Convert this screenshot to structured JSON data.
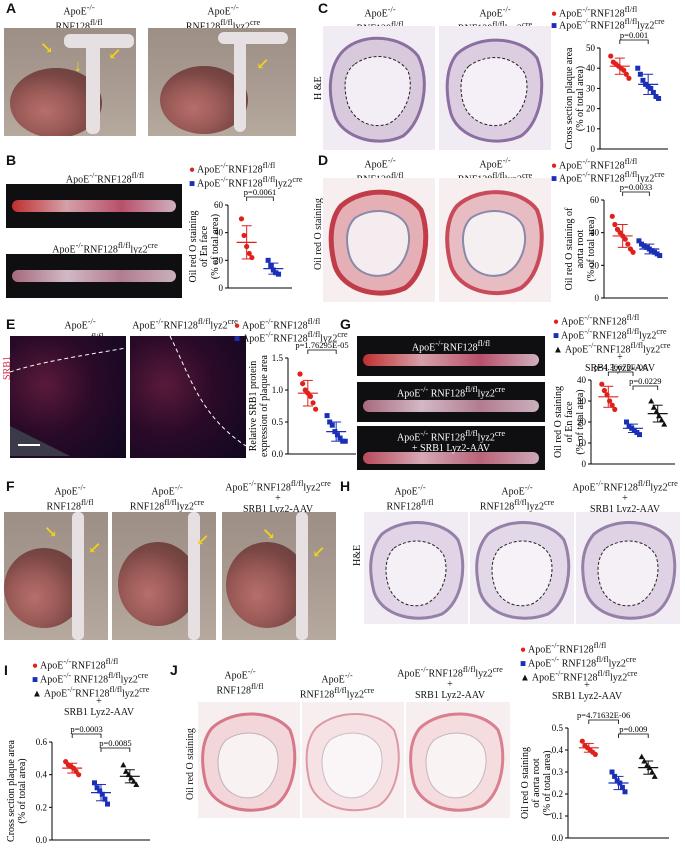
{
  "panels": {
    "A": {
      "letter": "A",
      "label1": "ApoE",
      "label1sup": "-/-",
      "label1b": "RNF128",
      "label1bsup": "fl/fl",
      "label2": "ApoE",
      "label2sup": "-/-",
      "label2b": "RNF128",
      "label2bsup": "fl/fl",
      "label2bsuf": "lyz2",
      "label2bsuf2": "cre"
    },
    "B": {
      "letter": "B",
      "img1": "ApoE-/-RNF128fl/fl",
      "img2": "ApoE-/-RNF128fl/fllyz2cre",
      "legend1": "ApoE-/-RNF128fl/fl",
      "legend2": "ApoE-/-RNF128fl/fllyz2cre",
      "ylabel": "Oil red O staining of En face (% of total area)",
      "pval": "p=0.0061"
    },
    "C": {
      "letter": "C",
      "col1": "ApoE-/- RNF128fl/fl",
      "col2": "ApoE-/- RNF128fl/fllyz2cre",
      "rowlabel": "H &E",
      "legend1": "ApoE-/-RNF128fl/fl",
      "legend2": "ApoE-/-RNF128fl/fllyz2cre",
      "ylabel": "Cross section plaque area (% of total area)",
      "pval": "p=0.001"
    },
    "D": {
      "letter": "D",
      "col1": "ApoE-/- RNF128fl/fl",
      "col2": "ApoE-/- RNF128fl/fllyz2cre",
      "rowlabel": "Oil red O staining",
      "legend1": "ApoE-/-RNF128fl/fl",
      "legend2": "ApoE-/-RNF128fl/fllyz2cre",
      "ylabel": "Oil red O staining of aorta root (% of total area)",
      "pval": "p=0.0033"
    },
    "E": {
      "letter": "E",
      "col1": "ApoE-/- RNF128fl/fl",
      "col2": "ApoE-/- RNF128fl/fllyz2cre",
      "rowlabel": "SRB1",
      "legend1": "ApoE-/-RNF128fl/fl",
      "legend2": "ApoE-/-RNF128fl/fllyz2cre",
      "ylabel": "Relative SRB1 protein expression of plaque area",
      "pval": "p=1.76295E-05"
    },
    "F": {
      "letter": "F",
      "col1": "ApoE-/- RNF128fl/fl",
      "col2": "ApoE-/- RNF128fl/fllyz2cre",
      "col3a": "ApoE-/-RNF128fl/fllyz2cre",
      "col3b": "+",
      "col3c": "SRB1 Lyz2-AAV"
    },
    "G": {
      "letter": "G",
      "img1": "ApoE-/-RNF128fl/fl",
      "img2": "ApoE-/-RNF128fl/fllyz2cre",
      "img3a": "ApoE-/-RNF128fl/fllyz2cre",
      "img3b": "+ SRB1 Lyz2-AAV",
      "legend1": "ApoE-/-RNF128fl/fl",
      "legend2": "ApoE-/-RNF128fl/fllyz2cre",
      "legend3a": "ApoE-/-RNF128fl/fllyz2cre",
      "legend3b": "+",
      "legend3c": "SRB1 Lyz2-AAV",
      "ylabel": "Oil red O staining of En face (% of total area)",
      "pval1": "p=4.36676E-06",
      "pval2": "p=0.0229"
    },
    "H": {
      "letter": "H",
      "col1": "ApoE-/- RNF128fl/fl",
      "col2": "ApoE-/- RNF128fl/fllyz2cre",
      "col3a": "ApoE-/-RNF128fl/fllyz2cre",
      "col3b": "+",
      "col3c": "SRB1 Lyz2-AAV",
      "rowlabel": "H&E"
    },
    "I": {
      "letter": "I",
      "legend1": "ApoE-/-RNF128fl/fl",
      "legend2": "ApoE-/- RNF128fl/fllyz2cre",
      "legend3a": "ApoE-/-RNF128fl/fllyz2cre",
      "legend3b": "+",
      "legend3c": "SRB1 Lyz2-AAV",
      "ylabel": "Cross section plaque area (% of total area)",
      "pval1": "p=0.0003",
      "pval2": "p=0.0085"
    },
    "J": {
      "letter": "J",
      "col1": "ApoE-/- RNF128fl/fl",
      "col2": "ApoE-/- RNF128fl/fllyz2cre",
      "col3a": "ApoE-/-RNF128fl/fllyz2cre",
      "col3b": "+",
      "col3c": "SRB1 Lyz2-AAV",
      "rowlabel": "Oil red O staining",
      "legend1": "ApoE-/-RNF128fl/fl",
      "legend2": "ApoE-/- RNF128fl/fllyz2cre",
      "legend3a": "ApoE-/-RNF128fl/fllyz2cre",
      "legend3b": "+",
      "legend3c": "SRB1 Lyz2-AAV",
      "ylabel": "Oil red O staining of aorta root (% of total area)",
      "pval1": "p=4.71632E-06",
      "pval2": "p=0.009"
    }
  },
  "colors": {
    "red": "#e0201b",
    "blue": "#1a2fb8",
    "black": "#111111",
    "arrow": "#f2d21a"
  },
  "chart_data": [
    {
      "panel": "B",
      "type": "scatter",
      "ylabel": "Oil red O staining of En face (% of total area)",
      "ylim": [
        0,
        60
      ],
      "yticks": [
        "0",
        "20",
        "40",
        "60"
      ],
      "series": [
        {
          "name": "ApoE-/-RNF128fl/fl",
          "color": "#e0201b",
          "values": [
            50,
            38,
            30,
            25,
            22
          ],
          "mean": 33,
          "sd": 12
        },
        {
          "name": "ApoE-/-RNF128fl/fllyz2cre",
          "color": "#1a2fb8",
          "values": [
            20,
            16,
            13,
            11,
            10
          ],
          "mean": 14,
          "sd": 4
        }
      ],
      "pvalues": [
        "p=0.0061"
      ]
    },
    {
      "panel": "C",
      "type": "scatter",
      "ylabel": "Cross section plaque area (% of total area)",
      "ylim": [
        0,
        50
      ],
      "yticks": [
        "0",
        "10",
        "20",
        "30",
        "40",
        "50"
      ],
      "series": [
        {
          "name": "ApoE-/-RNF128fl/fl",
          "color": "#e0201b",
          "values": [
            46,
            43,
            42,
            41,
            40,
            39,
            37,
            35
          ],
          "mean": 41,
          "sd": 4
        },
        {
          "name": "ApoE-/-RNF128fl/fllyz2cre",
          "color": "#1a2fb8",
          "values": [
            40,
            37,
            34,
            32,
            31,
            30,
            28,
            26,
            25
          ],
          "mean": 32,
          "sd": 5
        }
      ],
      "pvalues": [
        "p=0.001"
      ]
    },
    {
      "panel": "D",
      "type": "scatter",
      "ylabel": "Oil red O staining of aorta root (% of total area)",
      "ylim": [
        0,
        60
      ],
      "yticks": [
        "0",
        "20",
        "40",
        "60"
      ],
      "series": [
        {
          "name": "ApoE-/-RNF128fl/fl",
          "color": "#e0201b",
          "values": [
            50,
            45,
            42,
            40,
            38,
            36,
            33,
            30,
            28
          ],
          "mean": 38,
          "sd": 7
        },
        {
          "name": "ApoE-/-RNF128fl/fllyz2cre",
          "color": "#1a2fb8",
          "values": [
            35,
            33,
            32,
            31,
            30,
            29,
            28,
            27,
            26
          ],
          "mean": 30,
          "sd": 3
        }
      ],
      "pvalues": [
        "p=0.0033"
      ]
    },
    {
      "panel": "E",
      "type": "scatter",
      "ylabel": "Relative SRB1 protein expression of plaque area",
      "ylim": [
        0,
        1.5
      ],
      "yticks": [
        "0.0",
        "0.5",
        "1.0",
        "1.5"
      ],
      "series": [
        {
          "name": "ApoE-/-RNF128fl/fl",
          "color": "#e0201b",
          "values": [
            1.25,
            1.1,
            1.0,
            0.95,
            0.9,
            0.8,
            0.7
          ],
          "mean": 0.95,
          "sd": 0.2
        },
        {
          "name": "ApoE-/-RNF128fl/fllyz2cre",
          "color": "#1a2fb8",
          "values": [
            0.6,
            0.5,
            0.45,
            0.35,
            0.3,
            0.25,
            0.2,
            0.2
          ],
          "mean": 0.35,
          "sd": 0.15
        }
      ],
      "pvalues": [
        "p=1.76295E-05"
      ]
    },
    {
      "panel": "G",
      "type": "scatter",
      "ylabel": "Oil red O staining of En face (% of total area)",
      "ylim": [
        0,
        40
      ],
      "yticks": [
        "0",
        "10",
        "20",
        "30",
        "40"
      ],
      "series": [
        {
          "name": "ApoE-/-RNF128fl/fl",
          "color": "#e0201b",
          "values": [
            38,
            35,
            33,
            30,
            28,
            26
          ],
          "mean": 32,
          "sd": 5
        },
        {
          "name": "ApoE-/-RNF128fl/fllyz2cre",
          "color": "#1a2fb8",
          "values": [
            20,
            18,
            17,
            16,
            15,
            14
          ],
          "mean": 17,
          "sd": 2
        },
        {
          "name": "ApoE-/-RNF128fl/fllyz2cre + SRB1 Lyz2-AAV",
          "color": "#111111",
          "values": [
            30,
            27,
            25,
            23,
            21,
            19
          ],
          "mean": 24,
          "sd": 4
        }
      ],
      "pvalues": [
        "p=4.36676E-06",
        "p=0.0229"
      ]
    },
    {
      "panel": "I",
      "type": "scatter",
      "ylabel": "Cross section plaque area (% of total area)",
      "ylim": [
        0,
        0.6
      ],
      "yticks": [
        "0.0",
        "0.2",
        "0.4",
        "0.6"
      ],
      "series": [
        {
          "name": "ApoE-/-RNF128fl/fl",
          "color": "#e0201b",
          "values": [
            0.48,
            0.46,
            0.45,
            0.44,
            0.42,
            0.4
          ],
          "mean": 0.44,
          "sd": 0.03
        },
        {
          "name": "ApoE-/-RNF128fl/fllyz2cre",
          "color": "#1a2fb8",
          "values": [
            0.35,
            0.32,
            0.3,
            0.28,
            0.25,
            0.22
          ],
          "mean": 0.29,
          "sd": 0.05
        },
        {
          "name": "ApoE-/-RNF128fl/fllyz2cre + SRB1 Lyz2-AAV",
          "color": "#111111",
          "values": [
            0.46,
            0.42,
            0.4,
            0.38,
            0.36,
            0.34
          ],
          "mean": 0.39,
          "sd": 0.04
        }
      ],
      "pvalues": [
        "p=0.0003",
        "p=0.0085"
      ]
    },
    {
      "panel": "J",
      "type": "scatter",
      "ylabel": "Oil red O staining of aorta root (% of total area)",
      "ylim": [
        0,
        0.5
      ],
      "yticks": [
        "0.0",
        "0.1",
        "0.2",
        "0.3",
        "0.4",
        "0.5"
      ],
      "series": [
        {
          "name": "ApoE-/-RNF128fl/fl",
          "color": "#e0201b",
          "values": [
            0.44,
            0.42,
            0.41,
            0.4,
            0.39,
            0.38
          ],
          "mean": 0.41,
          "sd": 0.02
        },
        {
          "name": "ApoE-/-RNF128fl/fllyz2cre",
          "color": "#1a2fb8",
          "values": [
            0.3,
            0.28,
            0.26,
            0.25,
            0.23,
            0.21
          ],
          "mean": 0.25,
          "sd": 0.03
        },
        {
          "name": "ApoE-/-RNF128fl/fllyz2cre + SRB1 Lyz2-AAV",
          "color": "#111111",
          "values": [
            0.37,
            0.35,
            0.33,
            0.32,
            0.3,
            0.28
          ],
          "mean": 0.32,
          "sd": 0.03
        }
      ],
      "pvalues": [
        "p=4.71632E-06",
        "p=0.009"
      ]
    }
  ]
}
